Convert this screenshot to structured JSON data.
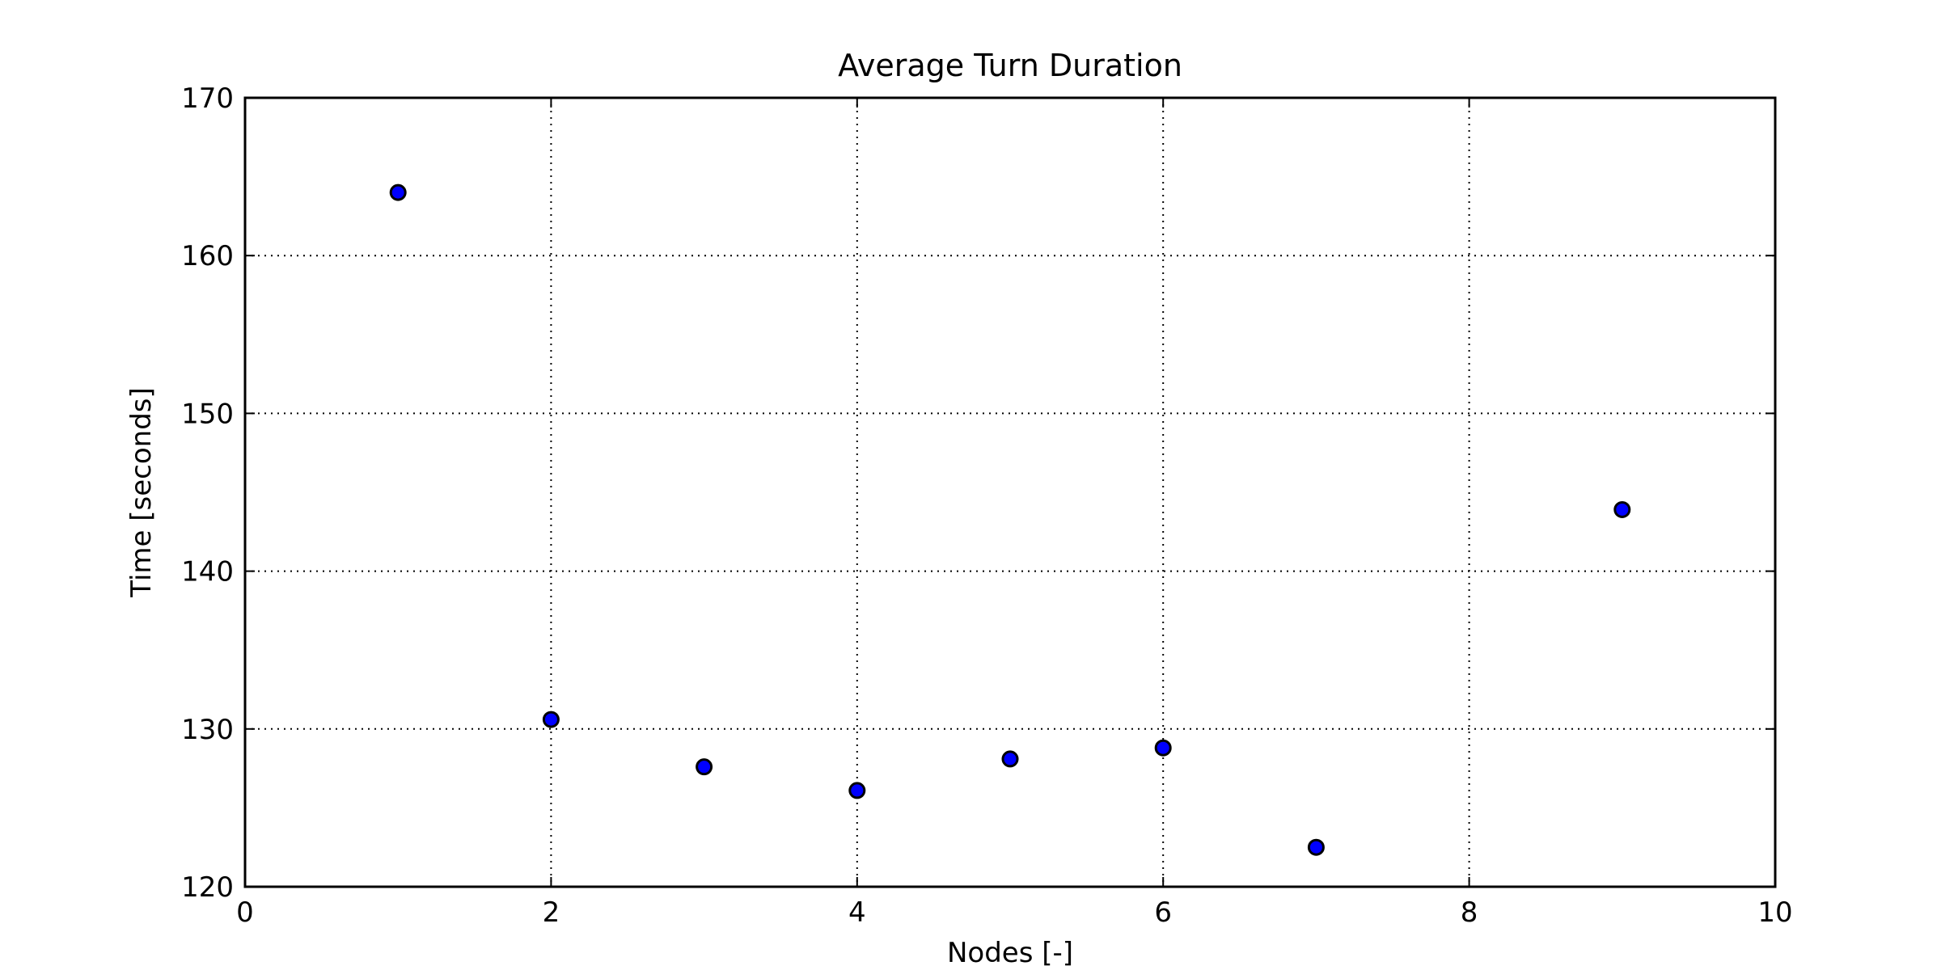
{
  "chart_data": {
    "type": "scatter",
    "title": "Average Turn Duration",
    "xlabel": "Nodes [-]",
    "ylabel": "Time [seconds]",
    "xlim": [
      0,
      10
    ],
    "ylim": [
      120,
      170
    ],
    "x_ticks": [
      0,
      2,
      4,
      6,
      8,
      10
    ],
    "y_ticks": [
      120,
      130,
      140,
      150,
      160,
      170
    ],
    "grid": true,
    "series": [
      {
        "x": [
          1,
          2,
          3,
          4,
          5,
          6,
          7,
          9
        ],
        "y": [
          164.0,
          130.6,
          127.6,
          126.1,
          128.1,
          128.8,
          122.5,
          143.9
        ]
      }
    ],
    "colors": {
      "marker_fill": "#0000ff",
      "marker_edge": "#000000",
      "axes": "#000000",
      "grid": "#000000"
    }
  }
}
